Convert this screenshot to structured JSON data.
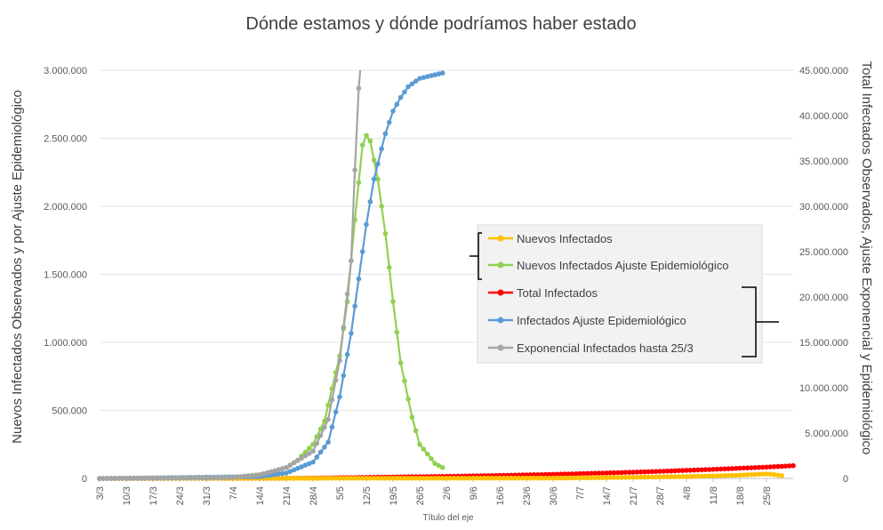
{
  "chart_data": {
    "type": "line",
    "title": "Dónde estamos y dónde podríamos haber estado",
    "xlabel": "Título del eje",
    "ylabel_left": "Nuevos Infectados Observados y por Ajuste Epidemiológico",
    "ylabel_right": "Total Infectados Observados, Ajuste Exponencial y Epidemiológico",
    "x_ticks": [
      "3/3",
      "10/3",
      "17/3",
      "24/3",
      "31/3",
      "7/4",
      "14/4",
      "21/4",
      "28/4",
      "5/5",
      "12/5",
      "19/5",
      "26/5",
      "2/6",
      "9/6",
      "16/6",
      "23/6",
      "30/6",
      "7/7",
      "14/7",
      "21/7",
      "28/7",
      "4/8",
      "11/8",
      "18/8",
      "25/8"
    ],
    "y_left": {
      "min": 0,
      "max": 3000000,
      "ticks": [
        0,
        500000,
        1000000,
        1500000,
        2000000,
        2500000,
        3000000
      ],
      "tick_labels": [
        "0",
        "500.000",
        "1.000.000",
        "1.500.000",
        "2.000.000",
        "2.500.000",
        "3.000.000"
      ]
    },
    "y_right": {
      "min": 0,
      "max": 45000000,
      "ticks": [
        0,
        5000000,
        10000000,
        15000000,
        20000000,
        25000000,
        30000000,
        35000000,
        40000000,
        45000000
      ],
      "tick_labels": [
        "0",
        "5.000.000",
        "10.000.000",
        "15.000.000",
        "20.000.000",
        "25.000.000",
        "30.000.000",
        "35.000.000",
        "40.000.000",
        "45.000.000"
      ]
    },
    "grid": true,
    "legend_position": "right-middle",
    "series": [
      {
        "name": "Nuevos Infectados",
        "axis": "left",
        "color": "#ffc000",
        "points": [
          [
            "3/3",
            0
          ],
          [
            "30/6",
            2000
          ],
          [
            "7/7",
            4000
          ],
          [
            "14/7",
            6000
          ],
          [
            "21/7",
            8000
          ],
          [
            "28/7",
            11000
          ],
          [
            "4/8",
            14000
          ],
          [
            "11/8",
            18000
          ],
          [
            "18/8",
            24000
          ],
          [
            "25/8",
            33000
          ],
          [
            "27/8",
            28000
          ],
          [
            "29/8",
            20000
          ]
        ]
      },
      {
        "name": "Nuevos Infectados Ajuste Epidemiológico",
        "axis": "left",
        "color": "#92d050",
        "points": [
          [
            "3/3",
            0
          ],
          [
            "31/3",
            2000
          ],
          [
            "7/4",
            10000
          ],
          [
            "10/4",
            17000
          ],
          [
            "14/4",
            28000
          ],
          [
            "17/4",
            45000
          ],
          [
            "21/4",
            80000
          ],
          [
            "24/4",
            135000
          ],
          [
            "28/4",
            250000
          ],
          [
            "1/5",
            420000
          ],
          [
            "5/5",
            900000
          ],
          [
            "7/5",
            1300000
          ],
          [
            "9/5",
            1900000
          ],
          [
            "11/5",
            2450000
          ],
          [
            "12/5",
            2520000
          ],
          [
            "13/5",
            2480000
          ],
          [
            "15/5",
            2200000
          ],
          [
            "17/5",
            1800000
          ],
          [
            "19/5",
            1300000
          ],
          [
            "21/5",
            850000
          ],
          [
            "24/5",
            450000
          ],
          [
            "26/5",
            250000
          ],
          [
            "30/5",
            110000
          ],
          [
            "1/6",
            80000
          ]
        ]
      },
      {
        "name": "Total Infectados",
        "axis": "right",
        "color": "#ff0000",
        "points": [
          [
            "3/3",
            0
          ],
          [
            "21/4",
            15000
          ],
          [
            "28/4",
            40000
          ],
          [
            "12/5",
            120000
          ],
          [
            "2/6",
            230000
          ],
          [
            "16/6",
            330000
          ],
          [
            "30/6",
            450000
          ],
          [
            "14/7",
            600000
          ],
          [
            "28/7",
            780000
          ],
          [
            "11/8",
            1000000
          ],
          [
            "25/8",
            1250000
          ],
          [
            "1/9",
            1400000
          ]
        ]
      },
      {
        "name": "Infectados Ajuste Epidemiológico",
        "axis": "right",
        "color": "#5b9bd5",
        "points": [
          [
            "3/3",
            0
          ],
          [
            "14/4",
            200000
          ],
          [
            "21/4",
            600000
          ],
          [
            "28/4",
            1800000
          ],
          [
            "2/5",
            4000000
          ],
          [
            "5/5",
            9000000
          ],
          [
            "8/5",
            16000000
          ],
          [
            "10/5",
            22000000
          ],
          [
            "12/5",
            28000000
          ],
          [
            "14/5",
            33000000
          ],
          [
            "17/5",
            38000000
          ],
          [
            "19/5",
            40500000
          ],
          [
            "21/5",
            42000000
          ],
          [
            "23/5",
            43200000
          ],
          [
            "26/5",
            44100000
          ],
          [
            "1/6",
            44700000
          ]
        ]
      },
      {
        "name": "Exponencial Infectados hasta 25/3",
        "axis": "right",
        "color": "#a5a5a5",
        "points": [
          [
            "3/3",
            0
          ],
          [
            "7/4",
            100000
          ],
          [
            "14/4",
            400000
          ],
          [
            "21/4",
            1200000
          ],
          [
            "28/4",
            3000000
          ],
          [
            "2/5",
            6500000
          ],
          [
            "5/5",
            13000000
          ],
          [
            "8/5",
            24000000
          ],
          [
            "9/5",
            34000000
          ],
          [
            "10/5",
            43000000
          ],
          [
            "11/5",
            48000000
          ]
        ]
      }
    ]
  },
  "legend": {
    "items": [
      {
        "label": "Nuevos Infectados",
        "color": "#ffc000"
      },
      {
        "label": "Nuevos Infectados Ajuste Epidemiológico",
        "color": "#92d050"
      },
      {
        "label": "Total Infectados",
        "color": "#ff0000"
      },
      {
        "label": "Infectados Ajuste Epidemiológico",
        "color": "#5b9bd5"
      },
      {
        "label": "Exponencial Infectados hasta 25/3",
        "color": "#a5a5a5"
      }
    ]
  }
}
